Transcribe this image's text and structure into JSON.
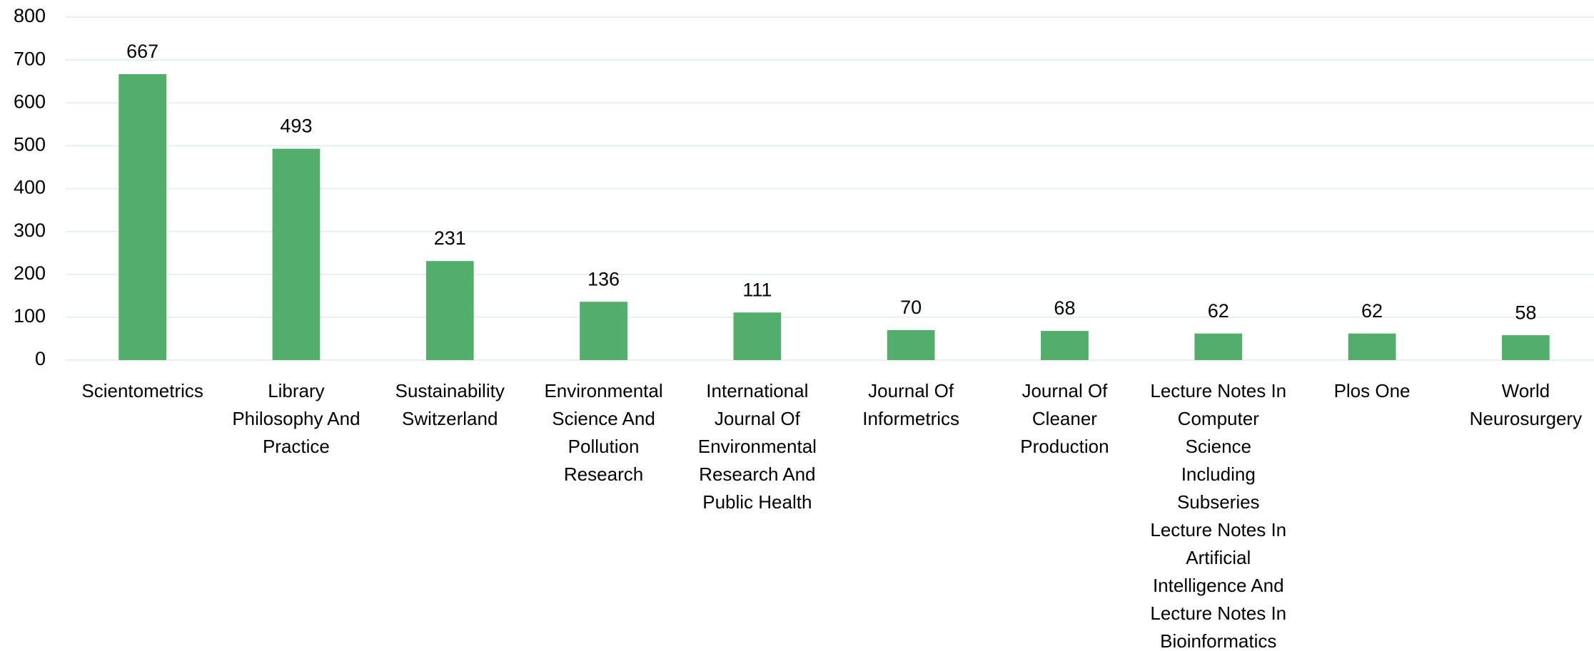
{
  "chart_data": {
    "type": "bar",
    "categories": [
      "Scientometrics",
      "Library\nPhilosophy And\nPractice",
      "Sustainability\nSwitzerland",
      "Environmental\nScience And\nPollution\nResearch",
      "International\nJournal Of\nEnvironmental\nResearch And\nPublic Health",
      "Journal Of\nInformetrics",
      "Journal Of\nCleaner\nProduction",
      "Lecture Notes In\nComputer\nScience\nIncluding\nSubseries\nLecture Notes In\nArtificial\nIntelligence And\nLecture Notes In\nBioinformatics",
      "Plos One",
      "World\nNeurosurgery"
    ],
    "values": [
      667,
      493,
      231,
      136,
      111,
      70,
      68,
      62,
      62,
      58
    ],
    "color": "#53ad6b",
    "ylim": [
      0,
      800
    ],
    "yticks": [
      0,
      100,
      200,
      300,
      400,
      500,
      600,
      700,
      800
    ],
    "grid": true,
    "data_labels": true
  }
}
